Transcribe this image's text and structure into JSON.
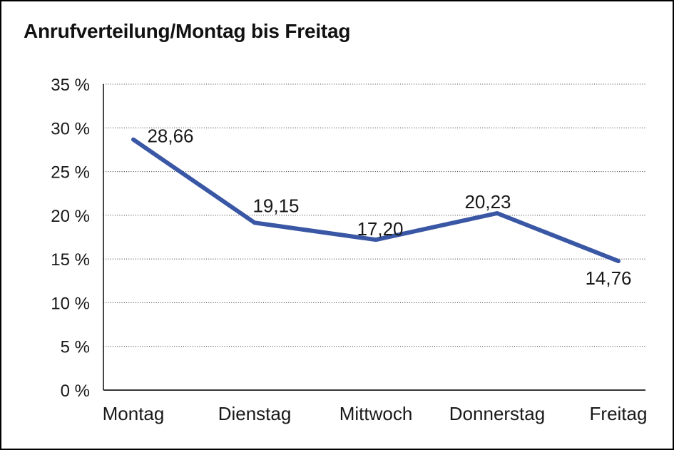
{
  "window": {
    "title": "Anrufverteilung/Montag bis Freitag"
  },
  "chart_data": {
    "type": "line",
    "title": "Anrufverteilung/Montag bis Freitag",
    "categories": [
      "Montag",
      "Dienstag",
      "Mittwoch",
      "Donnerstag",
      "Freitag"
    ],
    "values": [
      28.66,
      19.15,
      17.2,
      20.23,
      14.76
    ],
    "value_labels": [
      "28,66",
      "19,15",
      "17,20",
      "20,23",
      "14,76"
    ],
    "xlabel": "",
    "ylabel": "",
    "ylim": [
      0,
      35
    ],
    "y_tick_step": 5,
    "y_tick_labels": [
      "0 %",
      "5 %",
      "10 %",
      "15 %",
      "20 %",
      "25 %",
      "30 %",
      "35 %"
    ],
    "grid": "horizontal-dotted",
    "legend": "none",
    "colors": {
      "line": "#3a57a5",
      "text": "#191919",
      "grid": "#4a4a4a",
      "axis": "#1a1a1a",
      "background": "#ffffff",
      "border": "#000000"
    }
  }
}
